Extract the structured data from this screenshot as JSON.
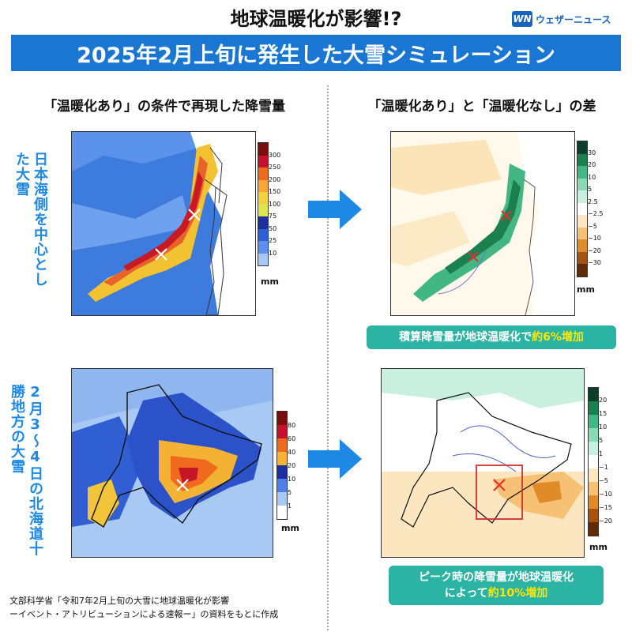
{
  "header": {
    "top_title": "地球温暖化が影響!?",
    "banner_title": "2025年2月上旬に発生した大雪シミュレーション",
    "logo_mark": "WN",
    "logo_text": "ウェザーニュース"
  },
  "columns": {
    "left_heading": "「温暖化あり」の条件で再現した降雪量",
    "right_heading": "「温暖化あり」と「温暖化なし」の差"
  },
  "side_labels": {
    "row1": "日本海側を中心とした大雪",
    "row2": "2月3～4日の北海道十勝地方の大雪"
  },
  "colorbars": {
    "unit": "mm",
    "top_left": {
      "ticks": [
        "300",
        "250",
        "200",
        "150",
        "100",
        "75",
        "50",
        "25",
        "10"
      ],
      "colors": [
        "#7a0d0d",
        "#c8102e",
        "#f06a1e",
        "#f9a634",
        "#f2d43a",
        "#dfe64b",
        "#1c2f9e",
        "#2e5fd8",
        "#5c8ff0",
        "#a8c8f5"
      ]
    },
    "top_right": {
      "ticks": [
        "30",
        "20",
        "10",
        "5",
        "2.5",
        "−2.5",
        "−5",
        "−10",
        "−20",
        "−30"
      ],
      "colors": [
        "#0b3f2a",
        "#1b7f4e",
        "#43b783",
        "#8ad9b5",
        "#c9f0de",
        "#ffffff",
        "#fbe6bf",
        "#f6c174",
        "#e08b2a",
        "#a65312",
        "#5e2c08"
      ]
    },
    "bottom_left": {
      "ticks": [
        "80",
        "60",
        "40",
        "20",
        "10",
        "5",
        "1"
      ],
      "colors": [
        "#7a0d0d",
        "#c8102e",
        "#f06a1e",
        "#f9b233",
        "#1c2f9e",
        "#4f7fe6",
        "#a8c8f5",
        "#ffffff"
      ]
    },
    "bottom_right": {
      "ticks": [
        "20",
        "15",
        "10",
        "5",
        "1",
        "−1",
        "−5",
        "−10",
        "−15",
        "−20"
      ],
      "colors": [
        "#0b3f2a",
        "#1b7f4e",
        "#43b783",
        "#8ad9b5",
        "#c9f0de",
        "#ffffff",
        "#fbe6bf",
        "#f6c174",
        "#e08b2a",
        "#a65312",
        "#5e2c08"
      ]
    }
  },
  "callouts": {
    "top_prefix": "積算降雪量が地球温暖化で",
    "top_highlight": "約6%増加",
    "bottom_line1": "ピーク時の降雪量が地球温暖化",
    "bottom_prefix": "によって",
    "bottom_highlight": "約10%増加"
  },
  "source": {
    "line1": "文部科学省「令和7年2月上旬の大雪に地球温暖化が影響",
    "line2": "ーイベント・アトリビューションによる速報ー」の資料をもとに作成"
  },
  "icons": [
    "arrow-right-icon",
    "cross-marker-icon",
    "logo-mark"
  ]
}
